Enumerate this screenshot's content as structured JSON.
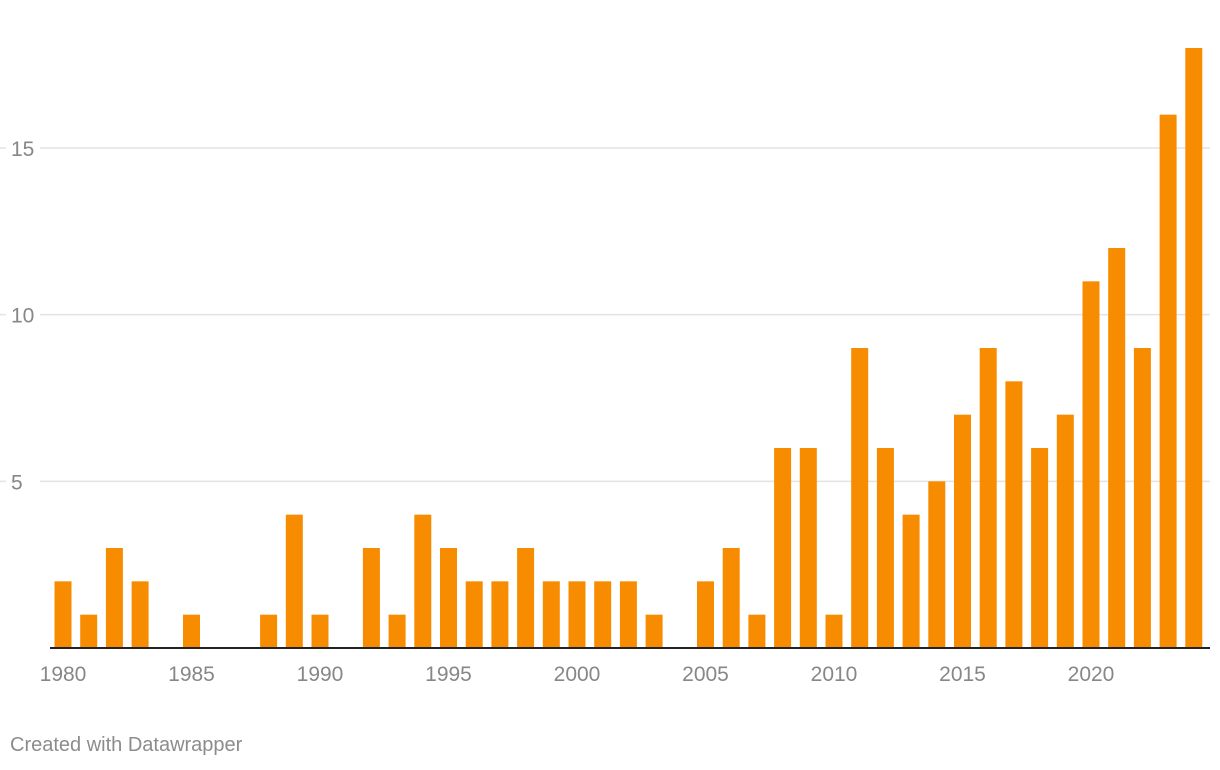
{
  "chart_data": {
    "type": "bar",
    "x": [
      1980,
      1981,
      1982,
      1983,
      1984,
      1985,
      1986,
      1987,
      1988,
      1989,
      1990,
      1991,
      1992,
      1993,
      1994,
      1995,
      1996,
      1997,
      1998,
      1999,
      2000,
      2001,
      2002,
      2003,
      2004,
      2005,
      2006,
      2007,
      2008,
      2009,
      2010,
      2011,
      2012,
      2013,
      2014,
      2015,
      2016,
      2017,
      2018,
      2019,
      2020,
      2021,
      2022,
      2023,
      2024
    ],
    "values": [
      2,
      1,
      3,
      2,
      0,
      1,
      0,
      0,
      1,
      4,
      1,
      0,
      3,
      1,
      4,
      3,
      2,
      2,
      3,
      2,
      2,
      2,
      2,
      1,
      0,
      2,
      3,
      1,
      6,
      6,
      1,
      9,
      6,
      4,
      5,
      7,
      9,
      8,
      6,
      7,
      11,
      12,
      9,
      16,
      18
    ],
    "x_tick_labels": [
      "1980",
      "1985",
      "1990",
      "1995",
      "2000",
      "2005",
      "2010",
      "2015",
      "2020"
    ],
    "y_ticks": [
      5,
      10,
      15
    ],
    "y_tick_labels": [
      "5",
      "10",
      "15"
    ],
    "ylim": [
      0,
      18
    ],
    "xlabel": "",
    "ylabel": "",
    "title": "",
    "grid": true,
    "bar_color": "#f78c00"
  },
  "footer": {
    "credit": "Created with Datawrapper"
  }
}
